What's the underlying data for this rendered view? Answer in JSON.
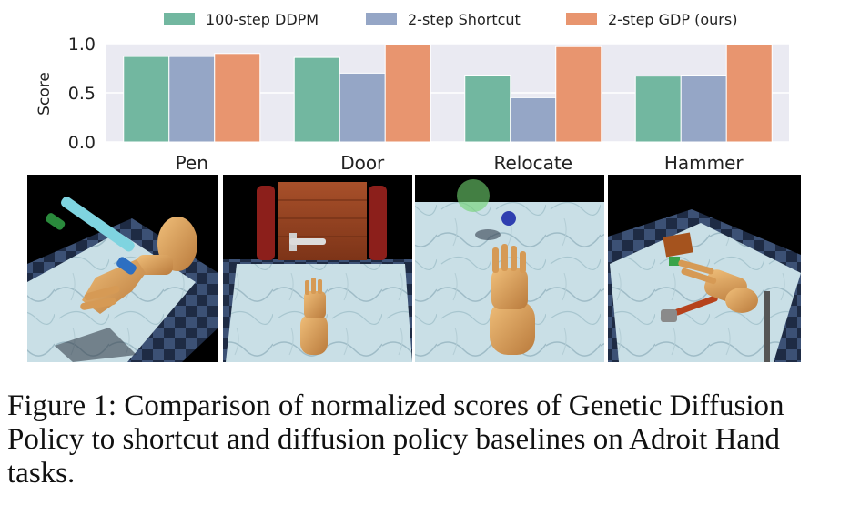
{
  "chart_data": {
    "type": "bar",
    "categories": [
      "Pen",
      "Door",
      "Relocate",
      "Hammer"
    ],
    "series": [
      {
        "name": "100-step DDPM",
        "color": "#72b7a0",
        "values": [
          0.87,
          0.86,
          0.68,
          0.67
        ]
      },
      {
        "name": "2-step Shortcut",
        "color": "#95a6c6",
        "values": [
          0.87,
          0.7,
          0.45,
          0.68
        ]
      },
      {
        "name": "2-step GDP (ours)",
        "color": "#e8956f",
        "values": [
          0.9,
          0.99,
          0.97,
          0.99
        ]
      }
    ],
    "ylabel": "Score",
    "ylim": [
      0,
      1.0
    ],
    "yticks": [
      "0.0",
      "0.5",
      "1.0"
    ],
    "grid": true,
    "legend_position": "top-center",
    "background": "#eaeaf2"
  },
  "caption": {
    "label": "Figure 1:",
    "text": "Comparison of normalized scores of Genetic Diffusion Policy to shortcut and diffusion policy baselines on Adroit Hand tasks."
  },
  "images": [
    {
      "name": "pen-task-image",
      "icon": "hand-with-pen"
    },
    {
      "name": "door-task-image",
      "icon": "hand-with-door"
    },
    {
      "name": "relocate-task-image",
      "icon": "hand-with-ball"
    },
    {
      "name": "hammer-task-image",
      "icon": "hand-with-hammer"
    }
  ]
}
